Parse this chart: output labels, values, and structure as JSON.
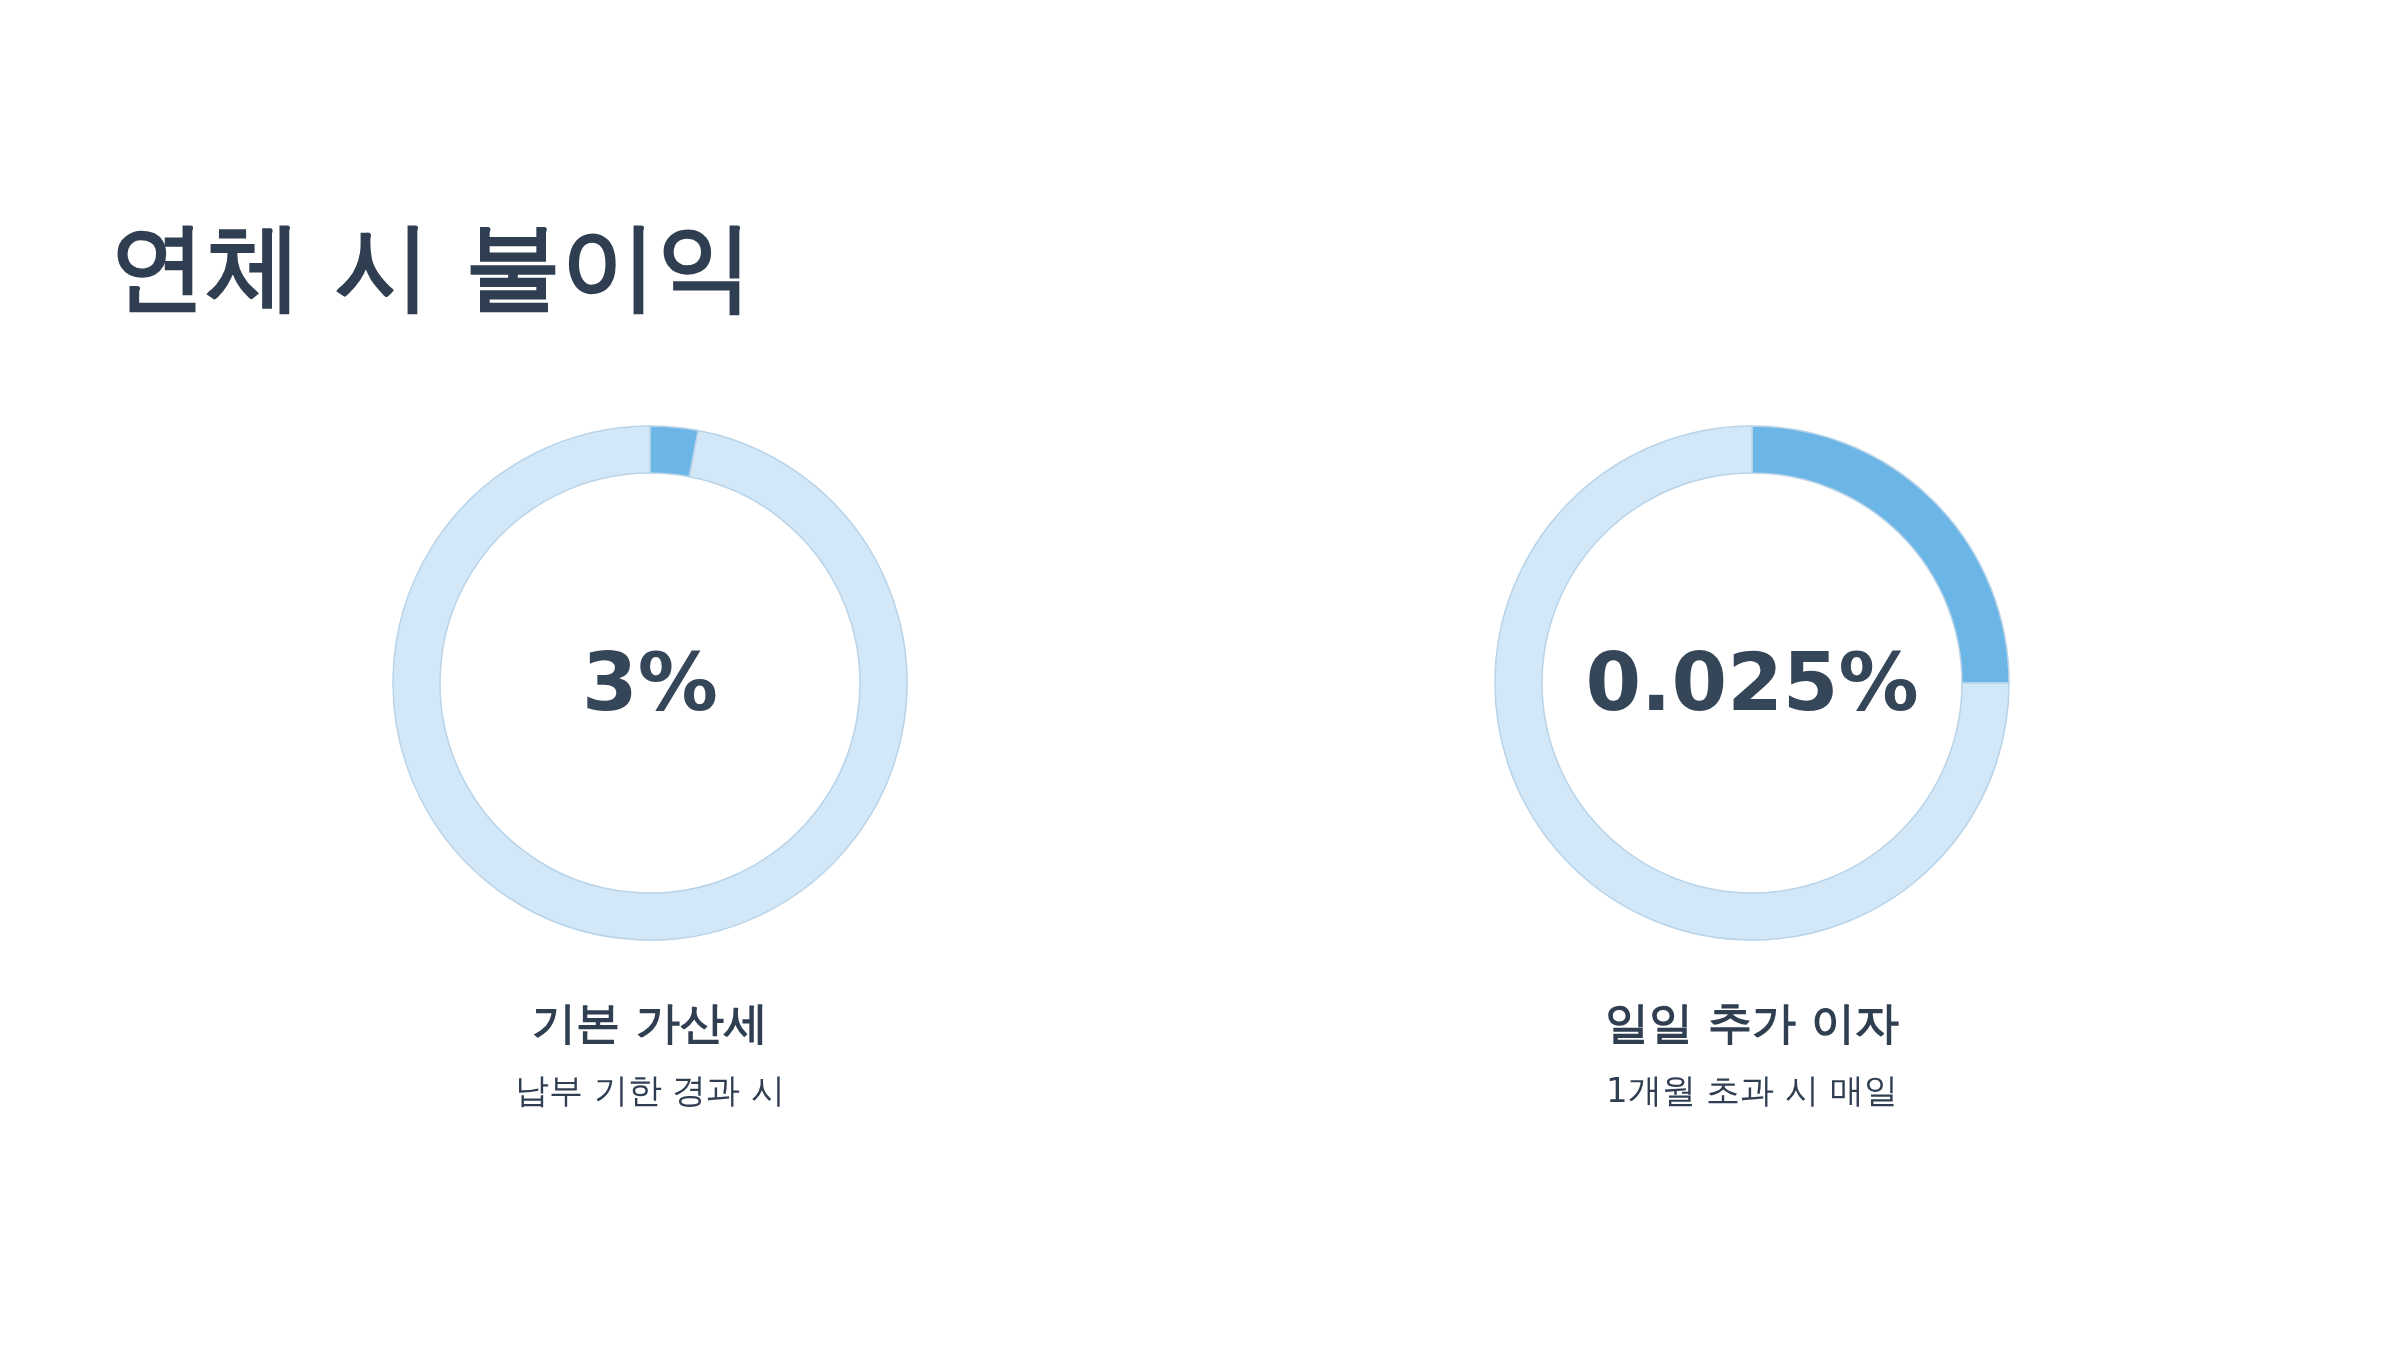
{
  "chart_data": [
    {
      "type": "other",
      "title": "연체 시 불이익"
    },
    {
      "type": "donut",
      "title": "기본 가산세",
      "subtitle": "납부 기한 경과 시",
      "annotations": [
        "3%"
      ],
      "categories": [
        null,
        null
      ],
      "values": [
        3,
        97
      ],
      "colors": [
        "#6bb6e6",
        "#d2e8f8"
      ]
    },
    {
      "type": "donut",
      "title": "일일 추가 이자",
      "subtitle": "1개월 초과 시 매일",
      "annotations": [
        "0.025%"
      ],
      "categories": [
        null,
        null
      ],
      "values": [
        25,
        75
      ],
      "colors": [
        "#6bb6e6",
        "#d2e8f8"
      ]
    }
  ]
}
